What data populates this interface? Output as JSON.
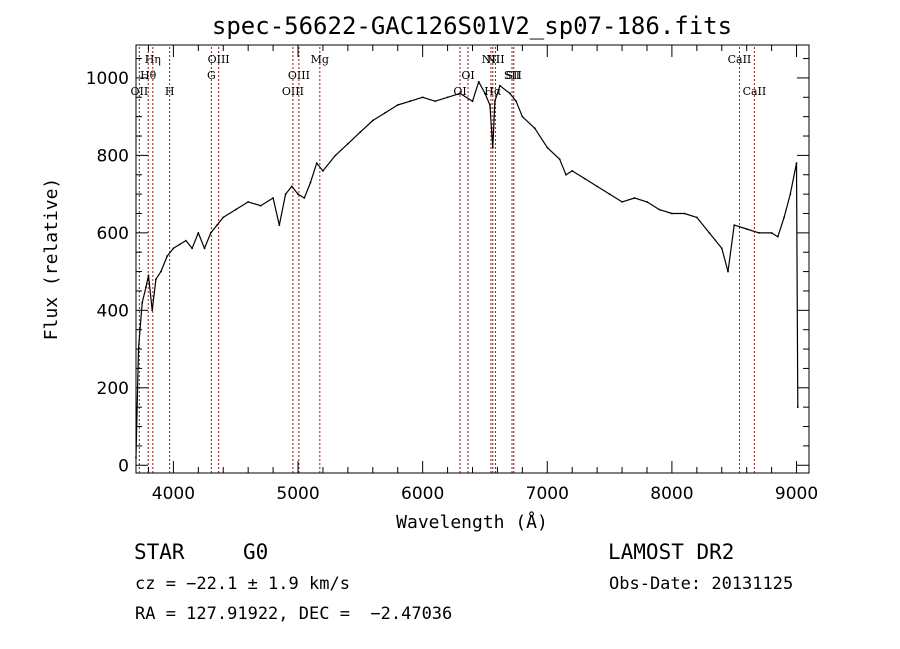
{
  "chart_data": {
    "type": "line",
    "title": "spec-56622-GAC126S01V2_sp07-186.fits",
    "xlabel": "Wavelength (Å)",
    "ylabel": "Flux (relative)",
    "xlim": [
      3700,
      9100
    ],
    "ylim": [
      -20,
      1085
    ],
    "xticks": [
      4000,
      5000,
      6000,
      7000,
      8000,
      9000
    ],
    "yticks": [
      0,
      200,
      400,
      600,
      800,
      1000
    ],
    "grid": false,
    "line_color": "#000000",
    "marker_color": "#8b1a1a",
    "series": [
      {
        "x": [
          3700,
          3720,
          3750,
          3780,
          3800,
          3830,
          3860,
          3900,
          3950,
          4000,
          4050,
          4100,
          4150,
          4200,
          4250,
          4300,
          4350,
          4400,
          4500,
          4600,
          4700,
          4800,
          4850,
          4900,
          4950,
          5000,
          5050,
          5100,
          5150,
          5200,
          5300,
          5400,
          5500,
          5600,
          5700,
          5800,
          5900,
          6000,
          6100,
          6200,
          6300,
          6400,
          6450,
          6500,
          6540,
          6563,
          6580,
          6620,
          6700,
          6750,
          6800,
          6900,
          7000,
          7100,
          7150,
          7200,
          7300,
          7400,
          7500,
          7600,
          7700,
          7800,
          7900,
          8000,
          8100,
          8200,
          8300,
          8400,
          8450,
          8500,
          8600,
          8700,
          8800,
          8850,
          8900,
          8950,
          9000,
          9010
        ],
        "y": [
          20,
          300,
          420,
          460,
          490,
          400,
          480,
          500,
          540,
          560,
          570,
          580,
          560,
          600,
          560,
          600,
          620,
          640,
          660,
          680,
          670,
          690,
          620,
          700,
          720,
          700,
          690,
          730,
          780,
          760,
          800,
          830,
          860,
          890,
          910,
          930,
          940,
          950,
          940,
          950,
          960,
          940,
          990,
          960,
          930,
          820,
          940,
          980,
          960,
          940,
          900,
          870,
          820,
          790,
          750,
          760,
          740,
          720,
          700,
          680,
          690,
          680,
          660,
          650,
          650,
          640,
          600,
          560,
          500,
          620,
          610,
          600,
          600,
          590,
          640,
          700,
          780,
          150
        ]
      }
    ],
    "line_markers": [
      {
        "x": 3727,
        "label": "OII",
        "tier": 3
      },
      {
        "x": 3798,
        "label": "Hθ",
        "tier": 2
      },
      {
        "x": 3835,
        "label": "Hη",
        "tier": 1
      },
      {
        "x": 3970,
        "label": "H",
        "tier": 3
      },
      {
        "x": 4305,
        "label": "G",
        "tier": 2
      },
      {
        "x": 4363,
        "label": "OIII",
        "tier": 1
      },
      {
        "x": 4959,
        "label": "OIII",
        "tier": 3
      },
      {
        "x": 5007,
        "label": "OIII",
        "tier": 2
      },
      {
        "x": 5175,
        "label": "Mg",
        "tier": 1
      },
      {
        "x": 6300,
        "label": "OI",
        "tier": 3
      },
      {
        "x": 6364,
        "label": "OI",
        "tier": 2
      },
      {
        "x": 6548,
        "label": "NII",
        "tier": 1
      },
      {
        "x": 6563,
        "label": "Hα",
        "tier": 3
      },
      {
        "x": 6584,
        "label": "NII",
        "tier": 1
      },
      {
        "x": 6717,
        "label": "SII",
        "tier": 2
      },
      {
        "x": 6731,
        "label": "SII",
        "tier": 2
      },
      {
        "x": 8542,
        "label": "CaII",
        "tier": 1
      },
      {
        "x": 8662,
        "label": "CaII",
        "tier": 3
      }
    ]
  },
  "info": {
    "class": "STAR",
    "subclass": "G0",
    "survey": "LAMOST DR2",
    "redshift_line": "cz = −22.1 ± 1.9 km/s",
    "obs_date_line": "Obs-Date: 20131125",
    "coords_line": "RA = 127.91922, DEC =  −2.47036"
  }
}
